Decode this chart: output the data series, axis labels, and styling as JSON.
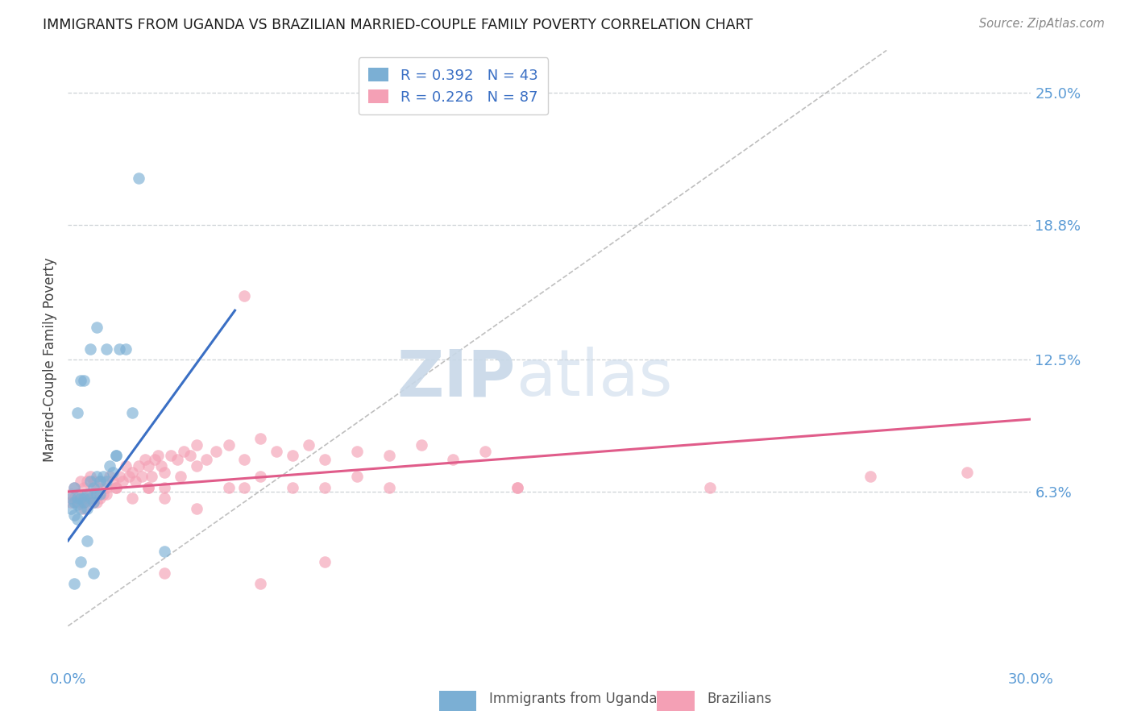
{
  "title": "IMMIGRANTS FROM UGANDA VS BRAZILIAN MARRIED-COUPLE FAMILY POVERTY CORRELATION CHART",
  "source": "Source: ZipAtlas.com",
  "ylabel": "Married-Couple Family Poverty",
  "xlim": [
    0.0,
    0.3
  ],
  "ylim": [
    -0.02,
    0.27
  ],
  "yticks": [
    0.063,
    0.125,
    0.188,
    0.25
  ],
  "ytick_labels": [
    "6.3%",
    "12.5%",
    "18.8%",
    "25.0%"
  ],
  "r_uganda": 0.392,
  "n_uganda": 43,
  "r_brazil": 0.226,
  "n_brazil": 87,
  "uganda_color": "#7bafd4",
  "brazil_color": "#f4a0b5",
  "uganda_line_color": "#3a6fc4",
  "brazil_line_color": "#e05c8a",
  "legend_label_uganda": "Immigrants from Uganda",
  "legend_label_brazil": "Brazilians",
  "diag_line_color": "#b8b8b8",
  "grid_color": "#c8cdd2",
  "xtick_color": "#5b9bd5",
  "ytick_color": "#5b9bd5",
  "title_color": "#1a1a1a",
  "source_color": "#888888",
  "ylabel_color": "#444444"
}
